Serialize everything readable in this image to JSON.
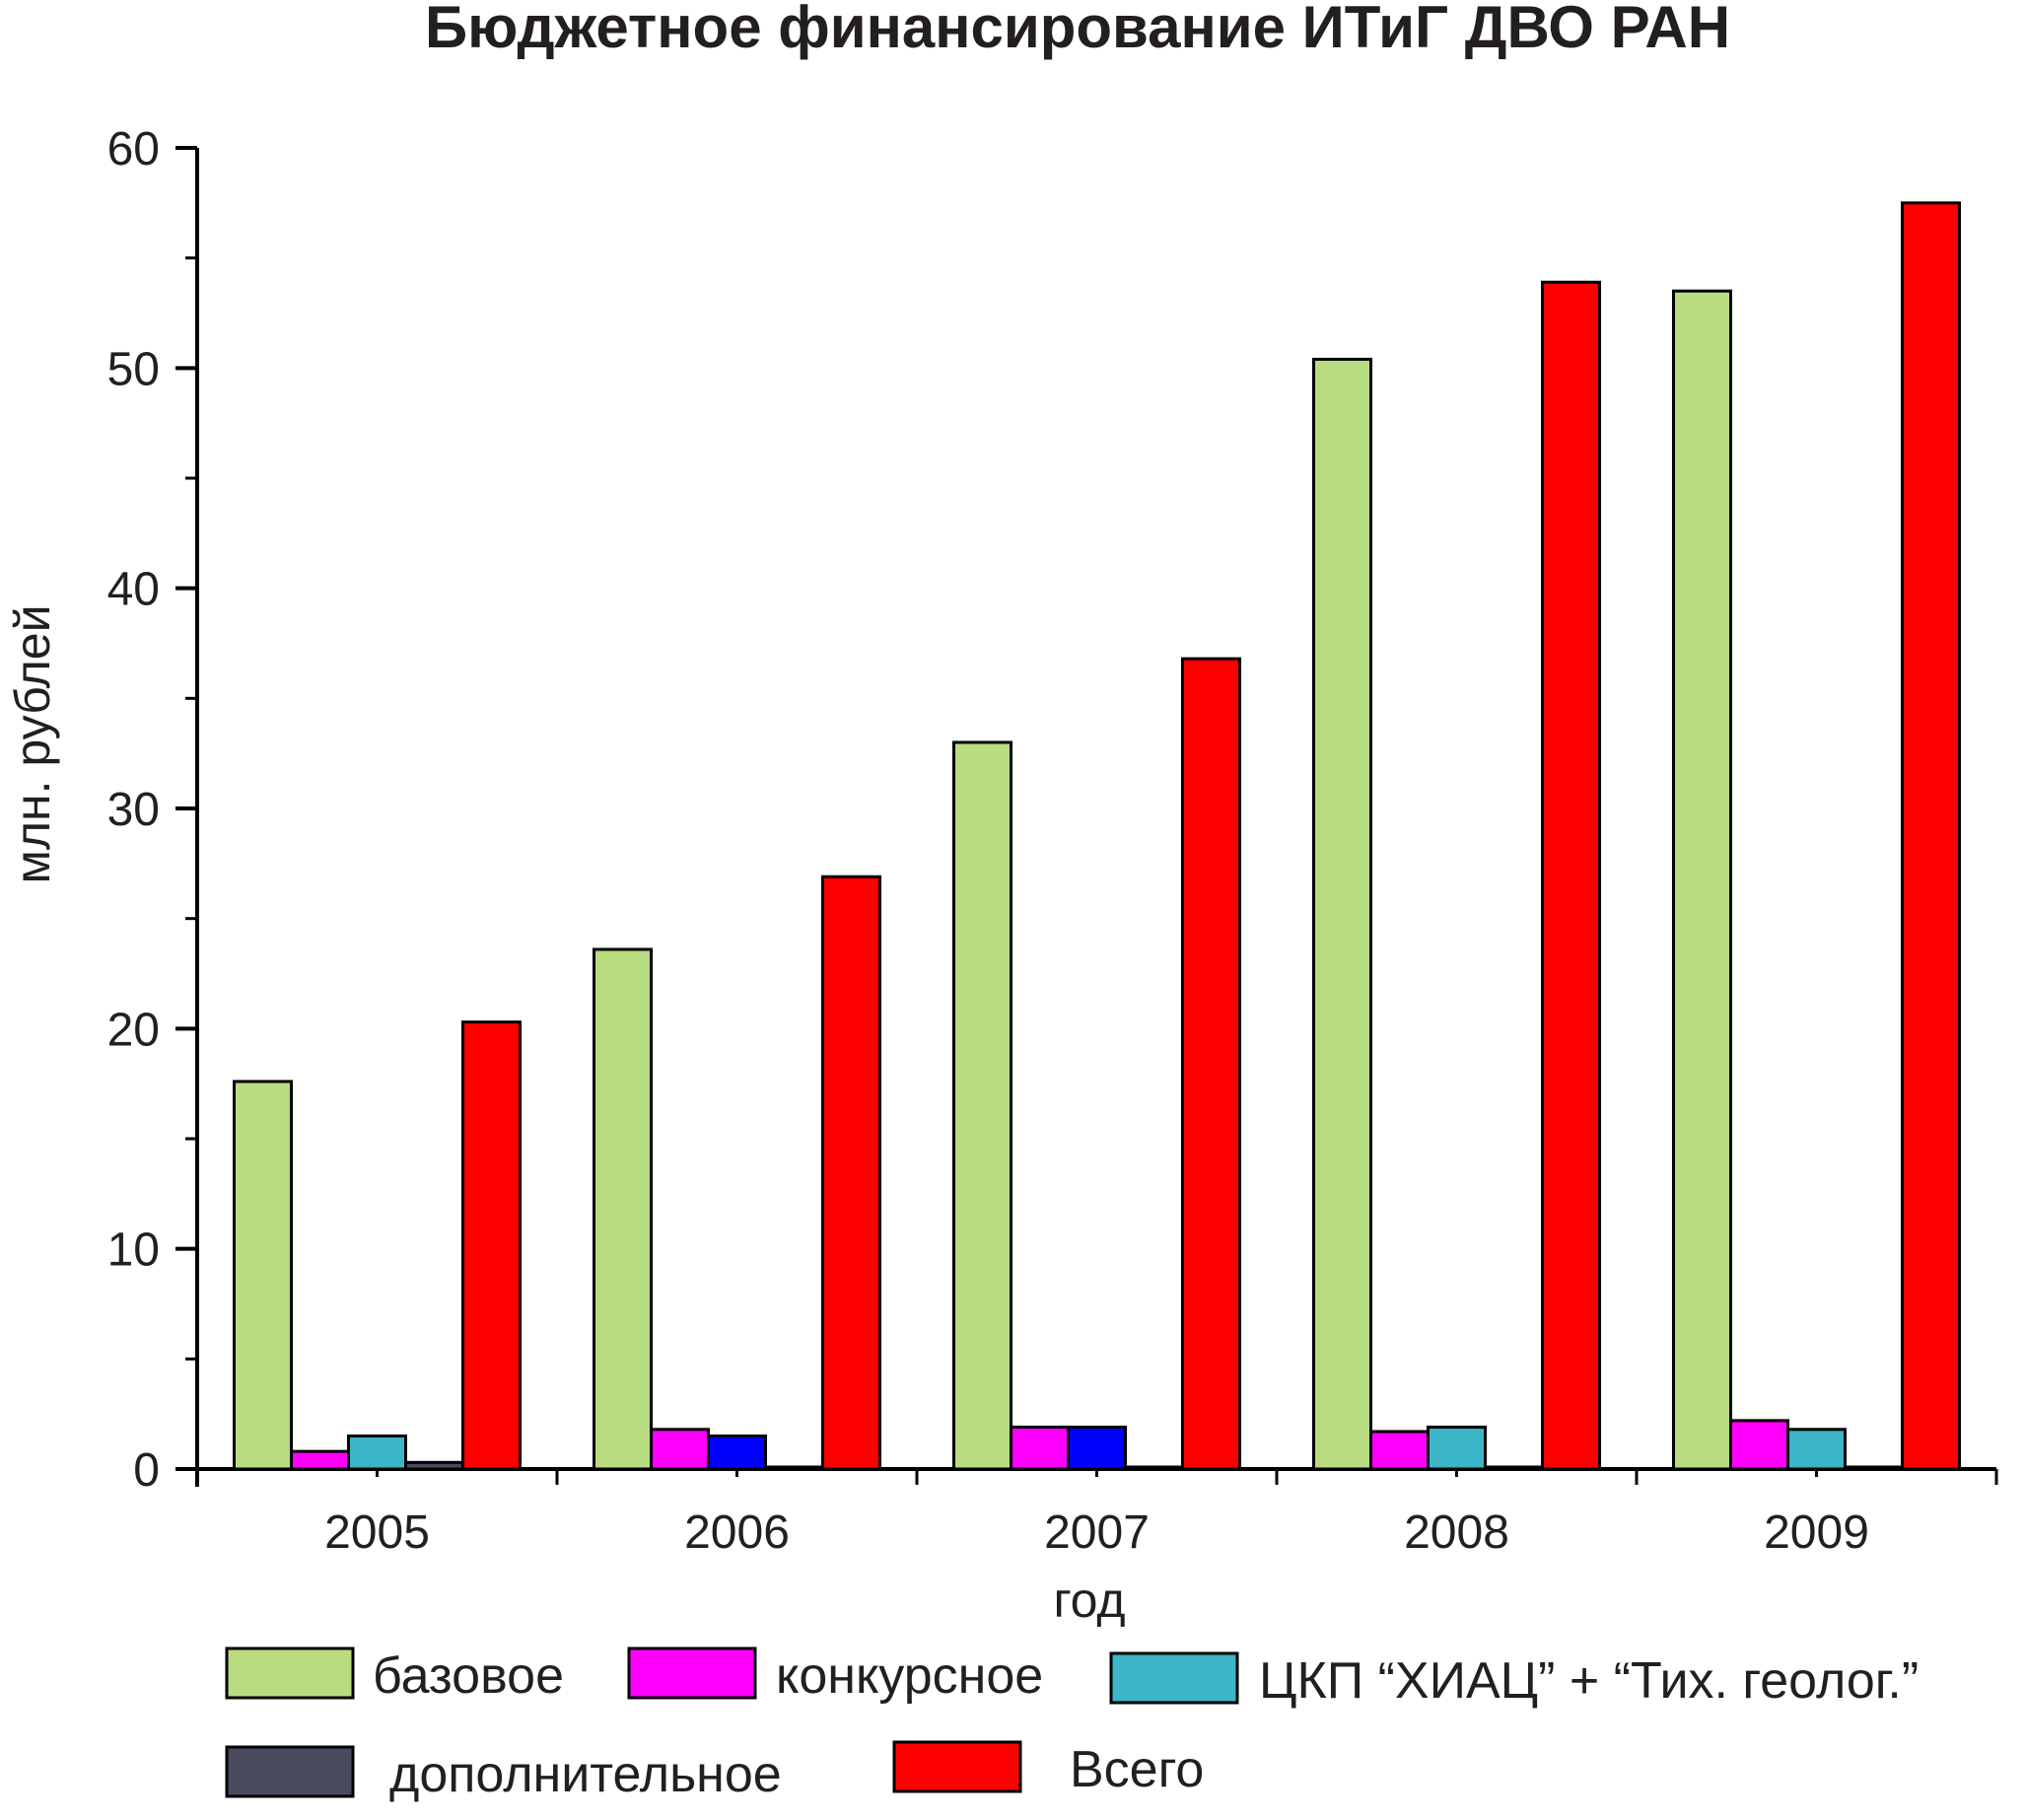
{
  "chart_data": {
    "type": "bar",
    "title": "Бюджетное финансирование ИТиГ ДВО РАН",
    "xlabel": "год",
    "ylabel": "млн. рублей",
    "ylim": [
      0,
      60
    ],
    "yticks": [
      "0",
      "10",
      "20",
      "30",
      "40",
      "50",
      "60"
    ],
    "categories": [
      "2005",
      "2006",
      "2007",
      "2008",
      "2009"
    ],
    "grid": false,
    "legend_position": "bottom",
    "series": [
      {
        "name": "базовое",
        "values": [
          17.6,
          23.6,
          33.0,
          50.4,
          53.5
        ],
        "color": "#b8dc7f",
        "overflow_colors": []
      },
      {
        "name": "конкурсное",
        "values": [
          0.8,
          1.8,
          1.9,
          1.7,
          2.2
        ],
        "color": "#ff00ff",
        "overflow_colors": []
      },
      {
        "name": "ЦКП “ХИАЦ” + “Тих. геолог.”",
        "values": [
          1.5,
          1.5,
          1.9,
          1.9,
          1.8
        ],
        "color": "#3db5c8",
        "overflow_colors": [
          "#3db5c8",
          "#0000ff",
          "#0000ff",
          "#3db5c8",
          "#3db5c8"
        ]
      },
      {
        "name": "дополнительное",
        "values": [
          0.3,
          0.0,
          0.0,
          0.0,
          0.0
        ],
        "color": "#4a4a5e",
        "overflow_colors": []
      },
      {
        "name": "Всего",
        "values": [
          20.3,
          26.9,
          36.8,
          53.9,
          57.5
        ],
        "color": "#ff0000",
        "overflow_colors": []
      }
    ]
  }
}
